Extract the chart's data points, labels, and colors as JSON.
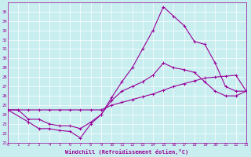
{
  "xlabel": "Windchill (Refroidissement éolien,°C)",
  "bg_color": "#c8eef0",
  "line_color": "#990099",
  "grid_color": "#ffffff",
  "xlim": [
    0,
    23
  ],
  "ylim": [
    21,
    36
  ],
  "xticks": [
    0,
    1,
    2,
    3,
    4,
    5,
    6,
    7,
    8,
    9,
    10,
    11,
    12,
    13,
    14,
    15,
    16,
    17,
    18,
    19,
    20,
    21,
    22,
    23
  ],
  "yticks": [
    21,
    22,
    23,
    24,
    25,
    26,
    27,
    28,
    29,
    30,
    31,
    32,
    33,
    34,
    35
  ],
  "line1_x": [
    0,
    1,
    2,
    3,
    4,
    5,
    6,
    7,
    8,
    9,
    10,
    11,
    12,
    13,
    14,
    15,
    16,
    17,
    18,
    19,
    20,
    21,
    22,
    23
  ],
  "line1_y": [
    24.5,
    24.5,
    24.5,
    24.5,
    24.5,
    24.5,
    24.5,
    24.5,
    24.5,
    24.5,
    25.0,
    25.3,
    25.6,
    25.9,
    26.2,
    26.6,
    27.0,
    27.3,
    27.6,
    27.9,
    28.0,
    28.1,
    28.2,
    26.5
  ],
  "line2_x": [
    0,
    1,
    2,
    3,
    4,
    5,
    6,
    7,
    8,
    9,
    10,
    11,
    12,
    13,
    14,
    15,
    16,
    17,
    18,
    19,
    20,
    21,
    22,
    23
  ],
  "line2_y": [
    24.5,
    24.5,
    23.5,
    23.5,
    23.0,
    22.8,
    22.8,
    22.5,
    23.2,
    24.0,
    25.5,
    26.5,
    27.0,
    27.5,
    28.2,
    29.5,
    29.0,
    28.8,
    28.5,
    27.5,
    26.5,
    26.0,
    26.0,
    26.5
  ],
  "line3_x": [
    0,
    2,
    3,
    4,
    5,
    6,
    7,
    8,
    9,
    10,
    11,
    12,
    13,
    14,
    15,
    16,
    17,
    18,
    19,
    20,
    21,
    22,
    23
  ],
  "line3_y": [
    24.5,
    23.2,
    22.5,
    22.5,
    22.3,
    22.2,
    21.5,
    23.0,
    24.0,
    25.8,
    27.5,
    29.0,
    31.0,
    33.0,
    35.5,
    34.5,
    33.5,
    31.8,
    31.5,
    29.5,
    27.0,
    26.5,
    26.5
  ]
}
